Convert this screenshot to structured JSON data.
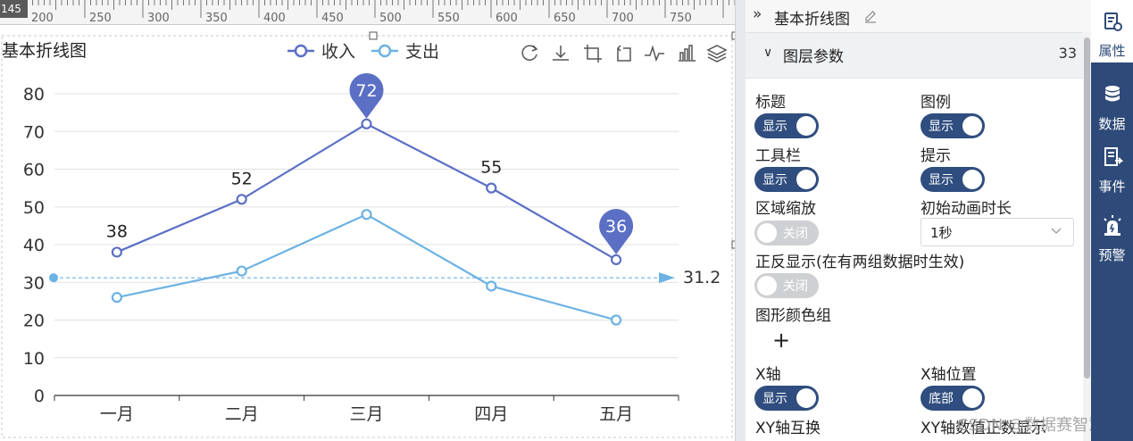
{
  "ruler": {
    "corner_value": "145",
    "labels": [
      "200",
      "250",
      "300",
      "350",
      "400",
      "450",
      "500",
      "550",
      "600",
      "650",
      "700",
      "750"
    ]
  },
  "chart_data": {
    "type": "line",
    "title": "基本折线图",
    "categories": [
      "一月",
      "二月",
      "三月",
      "四月",
      "五月"
    ],
    "series": [
      {
        "name": "收入",
        "values": [
          38,
          52,
          72,
          55,
          36
        ],
        "color": "#5b6fc4"
      },
      {
        "name": "支出",
        "values": [
          26,
          33,
          48,
          29,
          20
        ],
        "color": "#6cb2e3"
      }
    ],
    "ylim": [
      0,
      80
    ],
    "yticks": [
      "0",
      "10",
      "20",
      "30",
      "40",
      "50",
      "60",
      "70",
      "80"
    ],
    "data_labels": {
      "38": "38",
      "52": "52",
      "55": "55"
    },
    "markers": [
      {
        "type": "max",
        "category": "三月",
        "value": "72"
      },
      {
        "type": "min",
        "category": "五月",
        "value": "36"
      }
    ],
    "mark_line": {
      "label": "31.2",
      "value": 31.2
    },
    "legend_position": "top-center",
    "grid": "horizontal",
    "toolbox_icons": [
      "refresh-icon",
      "download-icon",
      "crop-icon",
      "undo-crop-icon",
      "line-chart-icon",
      "bar-chart-icon",
      "stack-icon"
    ]
  },
  "panel": {
    "title": "基本折线图",
    "section": {
      "label": "图层参数",
      "count": "33"
    },
    "fields": {
      "title_label": "标题",
      "legend_label": "图例",
      "toolbar_label": "工具栏",
      "tooltip_label": "提示",
      "zoom_label": "区域缩放",
      "anim_label": "初始动画时长",
      "reverse_label": "正反显示(在有两组数据时生效)",
      "color_group_label": "图形颜色组",
      "xaxis_label": "X轴",
      "xaxis_pos_label": "X轴位置",
      "xy_swap_label": "XY轴互换",
      "xy_value_label": "XY轴数值正数显示"
    },
    "toggles": {
      "on_text": "显示",
      "off_text": "关闭",
      "bottom_text": "底部"
    },
    "anim_duration": "1秒",
    "plus": "+"
  },
  "sidebar": {
    "items": [
      {
        "label": "属性",
        "icon": "properties-icon"
      },
      {
        "label": "数据",
        "icon": "database-icon"
      },
      {
        "label": "事件",
        "icon": "event-icon"
      },
      {
        "label": "预警",
        "icon": "alarm-icon"
      }
    ]
  },
  "watermark": "CSDN @数据赛智慧数"
}
